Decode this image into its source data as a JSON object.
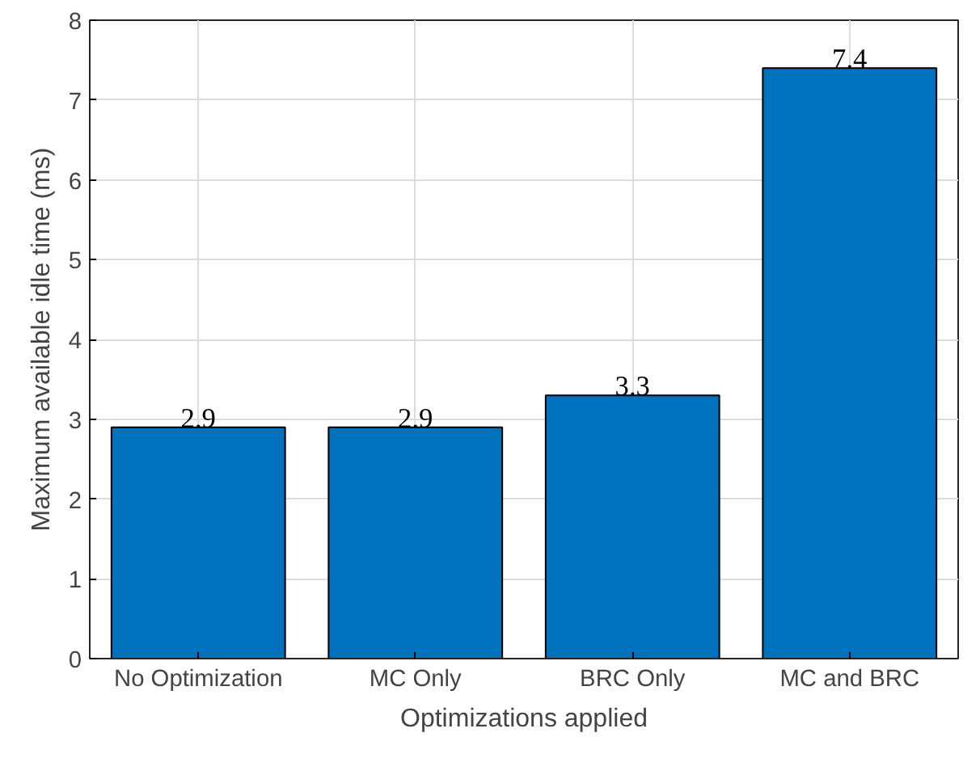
{
  "chart_data": {
    "type": "bar",
    "xlabel": "Optimizations applied",
    "ylabel": "Maximum available idle time (ms)",
    "categories": [
      "No Optimization",
      "MC Only",
      "BRC Only",
      "MC and BRC"
    ],
    "values": [
      2.9,
      2.9,
      3.3,
      7.4
    ],
    "color": "#0072bd",
    "ylim": [
      0,
      8
    ],
    "yticks": [
      0,
      1,
      2,
      3,
      4,
      5,
      6,
      7,
      8
    ],
    "grid": true,
    "data_labels": true
  }
}
